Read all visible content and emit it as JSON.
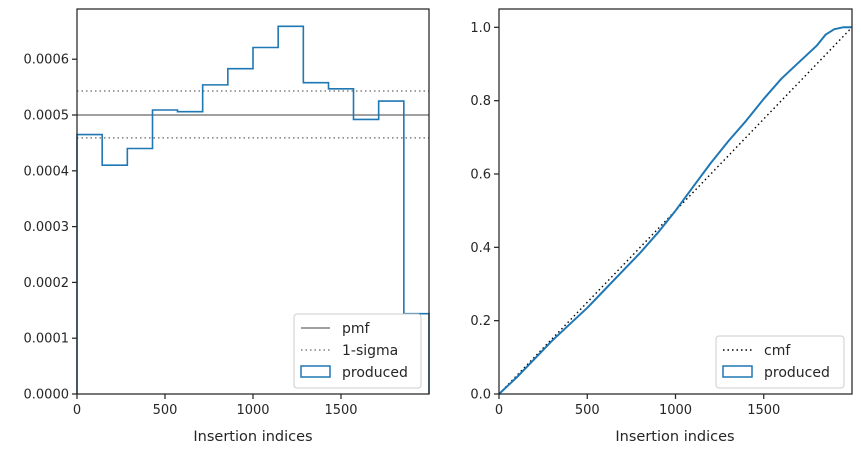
{
  "chart_data": [
    {
      "type": "histogram-step",
      "xlabel": "Insertion indices",
      "ylabel": "",
      "xlim": [
        0,
        2000
      ],
      "ylim": [
        0,
        0.00069
      ],
      "xticks": [
        0,
        500,
        1000,
        1500
      ],
      "yticks": [
        0,
        0.0001,
        0.0002,
        0.0003,
        0.0004,
        0.0005,
        0.0006
      ],
      "ytick_labels": [
        "0.0000",
        "0.0001",
        "0.0002",
        "0.0003",
        "0.0004",
        "0.0005",
        "0.0006"
      ],
      "bin_edges": [
        0,
        143,
        286,
        429,
        571,
        714,
        857,
        1000,
        1143,
        1286,
        1429,
        1571,
        1714,
        1857,
        2000
      ],
      "series": [
        {
          "name": "produced",
          "kind": "step",
          "color": "#1f77b4",
          "values": [
            0.000465,
            0.00041,
            0.00044,
            0.000509,
            0.000506,
            0.000554,
            0.000583,
            0.000621,
            0.000659,
            0.000558,
            0.000547,
            0.000492,
            0.000525,
            0.000144
          ]
        }
      ],
      "reference_lines": [
        {
          "name": "pmf",
          "y": 0.0005,
          "style": "solid",
          "color": "#808080"
        },
        {
          "name": "1-sigma",
          "y": 0.000543,
          "style": "dotted",
          "color": "#808080"
        },
        {
          "name": "1-sigma",
          "y": 0.000459,
          "style": "dotted",
          "color": "#808080"
        }
      ],
      "legend": {
        "position": "lower-right",
        "entries": [
          "pmf",
          "1-sigma",
          "produced"
        ]
      },
      "grid": false
    },
    {
      "type": "line",
      "xlabel": "Insertion indices",
      "ylabel": "",
      "xlim": [
        0,
        2000
      ],
      "ylim": [
        0,
        1.05
      ],
      "xticks": [
        0,
        500,
        1000,
        1500
      ],
      "yticks": [
        0.0,
        0.2,
        0.4,
        0.6,
        0.8,
        1.0
      ],
      "ytick_labels": [
        "0.0",
        "0.2",
        "0.4",
        "0.6",
        "0.8",
        "1.0"
      ],
      "series": [
        {
          "name": "cmf",
          "style": "dotted",
          "color": "#000000",
          "x": [
            0,
            2000
          ],
          "y": [
            0,
            1.0
          ]
        },
        {
          "name": "produced",
          "style": "solid",
          "color": "#1f77b4",
          "x": [
            0,
            100,
            200,
            300,
            400,
            500,
            600,
            700,
            800,
            900,
            1000,
            1100,
            1200,
            1300,
            1400,
            1500,
            1600,
            1700,
            1800,
            1850,
            1900,
            1950,
            2000
          ],
          "y": [
            0,
            0.045,
            0.095,
            0.145,
            0.19,
            0.235,
            0.285,
            0.335,
            0.385,
            0.44,
            0.5,
            0.565,
            0.63,
            0.69,
            0.745,
            0.805,
            0.86,
            0.905,
            0.95,
            0.98,
            0.995,
            1.0,
            1.0
          ]
        }
      ],
      "legend": {
        "position": "lower-right",
        "entries": [
          "cmf",
          "produced"
        ]
      },
      "grid": false
    }
  ]
}
